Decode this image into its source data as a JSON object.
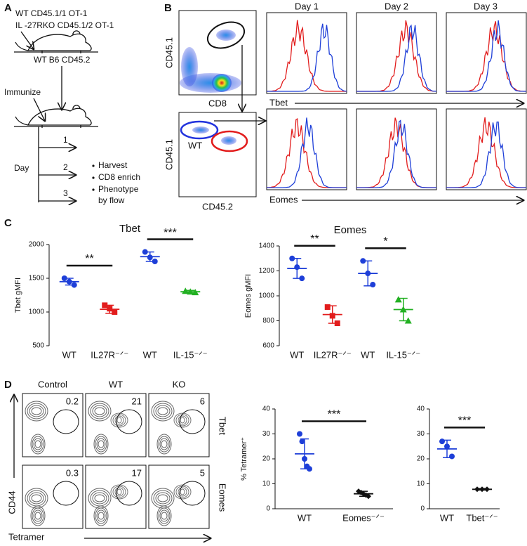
{
  "panel_a": {
    "label": "A",
    "donor1": "WT CD45.1/1 OT-1",
    "donor2": "IL -27RKO CD45.1/2 OT-1",
    "host": "WT B6 CD45.2",
    "immunize": "Immunize",
    "day": "Day",
    "days": [
      "1",
      "2",
      "3"
    ],
    "steps": [
      "Harvest",
      "CD8 enrich",
      "Phenotype"
    ],
    "step_cont": "by flow"
  },
  "panel_b": {
    "label": "B",
    "columns": [
      "Day 1",
      "Day 2",
      "Day 3"
    ],
    "top_y": "CD45.1",
    "top_x": "CD8",
    "bottom_y": "CD45.1",
    "bottom_x": "CD45.2",
    "wt_gate": "WT",
    "rows": [
      "Tbet",
      "Eomes"
    ]
  },
  "panel_c": {
    "label": "C"
  },
  "panel_d": {
    "label": "D",
    "columns": [
      "Control",
      "WT",
      "KO"
    ],
    "rows": [
      "Tbet",
      "Eomes"
    ],
    "percentages": [
      [
        "0.2",
        "21",
        "6"
      ],
      [
        "0.3",
        "17",
        "5"
      ]
    ],
    "y_label": "CD44",
    "x_label": "Tetramer"
  },
  "chart_data": [
    {
      "type": "dot",
      "title": "Tbet",
      "y_label": "Tbet gMFI",
      "ylim": [
        500,
        2000
      ],
      "yticks": [
        500,
        1000,
        1500,
        2000
      ],
      "categories": [
        "WT",
        "IL27R⁻ᐟ⁻",
        "WT",
        "IL-15⁻ᐟ⁻"
      ],
      "x_axis_line": false,
      "groups": [
        {
          "color": "#1e3fd8",
          "marker": "circle",
          "points": [
            1500,
            1450,
            1400
          ],
          "mean": 1450,
          "sd": 50
        },
        {
          "color": "#e21d1d",
          "marker": "square",
          "points": [
            1100,
            1050,
            1000
          ],
          "mean": 1040,
          "sd": 60
        },
        {
          "color": "#1e3fd8",
          "marker": "circle",
          "points": [
            1890,
            1810,
            1750
          ],
          "mean": 1820,
          "sd": 70
        },
        {
          "color": "#22b022",
          "marker": "triangle",
          "points": [
            1310,
            1300,
            1290
          ],
          "mean": 1300,
          "sd": 20
        }
      ],
      "annotations": [
        "**",
        "***"
      ]
    },
    {
      "type": "dot",
      "title": "Eomes",
      "y_label": "Eomes gMFI",
      "ylim": [
        600,
        1400
      ],
      "yticks": [
        600,
        800,
        1000,
        1200,
        1400
      ],
      "categories": [
        "WT",
        "IL27R⁻ᐟ⁻",
        "WT",
        "IL-15⁻ᐟ⁻"
      ],
      "x_axis_line": false,
      "groups": [
        {
          "color": "#1e3fd8",
          "marker": "circle",
          "points": [
            1300,
            1230,
            1140
          ],
          "mean": 1220,
          "sd": 80
        },
        {
          "color": "#e21d1d",
          "marker": "square",
          "points": [
            910,
            840,
            780
          ],
          "mean": 850,
          "sd": 70
        },
        {
          "color": "#1e3fd8",
          "marker": "circle",
          "points": [
            1280,
            1180,
            1090
          ],
          "mean": 1180,
          "sd": 100
        },
        {
          "color": "#22b022",
          "marker": "triangle",
          "points": [
            970,
            890,
            800
          ],
          "mean": 890,
          "sd": 90
        }
      ],
      "annotations": [
        "**",
        "*"
      ]
    },
    {
      "type": "dot",
      "y_label": "% Tetramer⁺",
      "ylim": [
        0,
        40
      ],
      "yticks": [
        0,
        10,
        20,
        30,
        40
      ],
      "categories": [
        "WT",
        "Eomes⁻ᐟ⁻"
      ],
      "x_axis_line": true,
      "groups": [
        {
          "color": "#1e3fd8",
          "marker": "circle",
          "points": [
            30,
            27,
            20,
            17,
            16
          ],
          "mean": 22,
          "sd": 6
        },
        {
          "color": "#111111",
          "marker": "diamond",
          "points": [
            7,
            6.5,
            6,
            5.5,
            5
          ],
          "mean": 6,
          "sd": 1
        }
      ],
      "annotations": [
        "***"
      ]
    },
    {
      "type": "dot",
      "ylim": [
        0,
        40
      ],
      "yticks": [
        0,
        10,
        20,
        30,
        40
      ],
      "categories": [
        "WT",
        "Tbet⁻ᐟ⁻"
      ],
      "x_axis_line": true,
      "groups": [
        {
          "color": "#1e3fd8",
          "marker": "circle",
          "points": [
            27,
            25,
            21
          ],
          "mean": 24,
          "sd": 3.5
        },
        {
          "color": "#111111",
          "marker": "diamond",
          "points": [
            7.8,
            7.8,
            7.8
          ],
          "mean": 7.8,
          "sd": 0.3
        }
      ],
      "annotations": [
        "***"
      ]
    }
  ]
}
